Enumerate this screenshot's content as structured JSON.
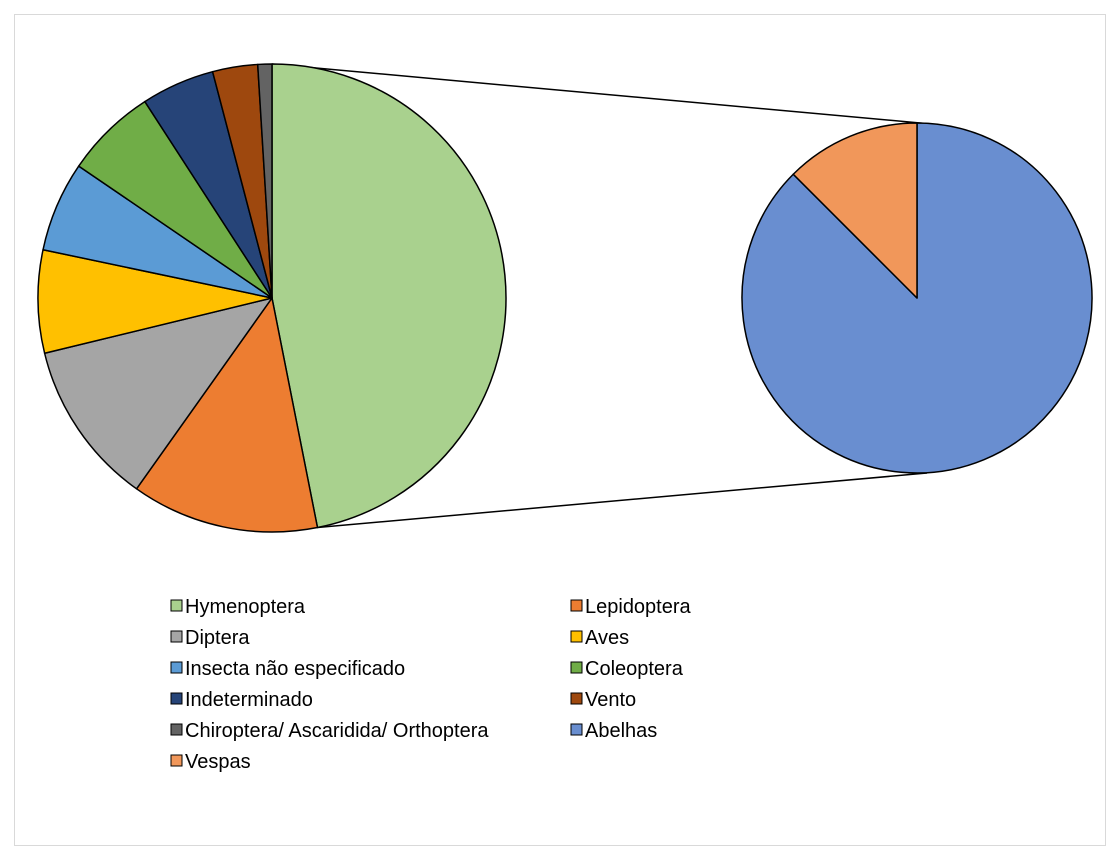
{
  "chart_data": {
    "type": "pie",
    "subtype": "pie-of-pie",
    "title": "",
    "grid": false,
    "legend_position": "bottom",
    "main_pie": [
      {
        "label": "Hymenoptera",
        "value": 48.2,
        "color": "#a9d18e"
      },
      {
        "label": "Lepidoptera",
        "value": 13.3,
        "color": "#ed7d31"
      },
      {
        "label": "Diptera",
        "value": 11.7,
        "color": "#a5a5a5"
      },
      {
        "label": "Aves",
        "value": 7.3,
        "color": "#ffc000"
      },
      {
        "label": "Insecta não especificado",
        "value": 6.4,
        "color": "#5b9bd5"
      },
      {
        "label": "Coleoptera",
        "value": 6.5,
        "color": "#70ad47"
      },
      {
        "label": "Indeterminado",
        "value": 5.2,
        "color": "#264478"
      },
      {
        "label": "Vento",
        "value": 3.2,
        "color": "#9e480e"
      },
      {
        "label": "Chiroptera/ Ascaridida/ Orthoptera",
        "value": 1.0,
        "color": "#636363"
      }
    ],
    "secondary_pie": [
      {
        "label": "Abelhas",
        "value": 87.5,
        "color": "#698ed0"
      },
      {
        "label": "Vespas",
        "value": 12.5,
        "color": "#f1975a"
      }
    ],
    "legend": [
      {
        "label": "Hymenoptera",
        "color": "#a9d18e"
      },
      {
        "label": "Lepidoptera",
        "color": "#ed7d31"
      },
      {
        "label": "Diptera",
        "color": "#a5a5a5"
      },
      {
        "label": "Aves",
        "color": "#ffc000"
      },
      {
        "label": "Insecta não especificado",
        "color": "#5b9bd5"
      },
      {
        "label": "Coleoptera",
        "color": "#70ad47"
      },
      {
        "label": "Indeterminado",
        "color": "#264478"
      },
      {
        "label": "Vento",
        "color": "#9e480e"
      },
      {
        "label": "Chiroptera/ Ascaridida/ Orthoptera",
        "color": "#636363"
      },
      {
        "label": "Abelhas",
        "color": "#698ed0"
      },
      {
        "label": "Vespas",
        "color": "#f1975a"
      }
    ]
  }
}
